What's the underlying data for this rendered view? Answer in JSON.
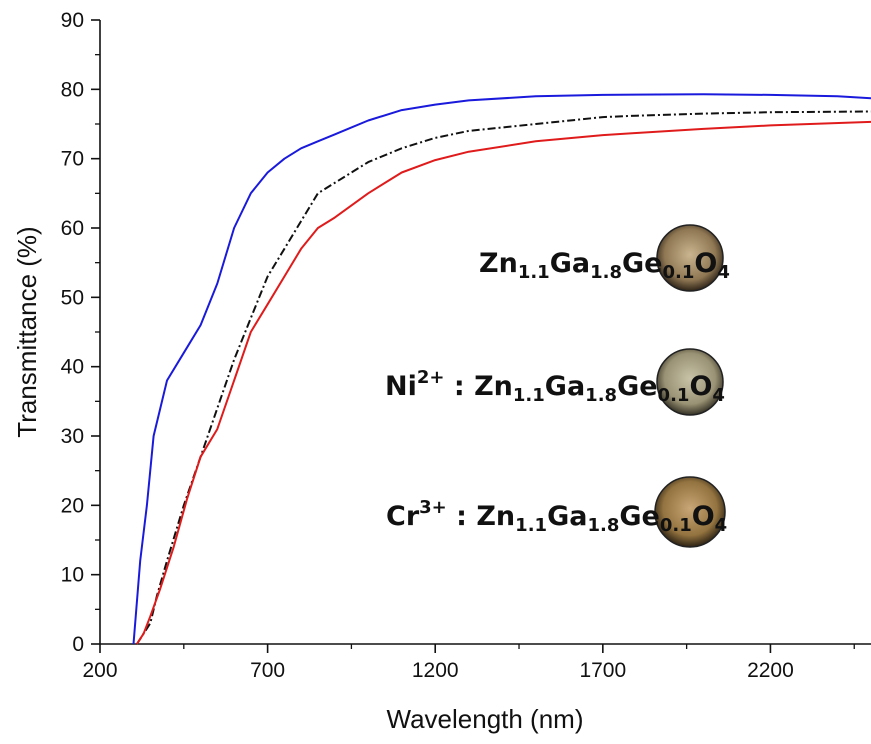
{
  "chart_data": {
    "type": "line",
    "xlabel": "Wavelength (nm)",
    "ylabel": "Transmittance (%)",
    "xlim": [
      200,
      2500
    ],
    "ylim": [
      0,
      90
    ],
    "x_ticks": [
      200,
      700,
      1200,
      1700,
      2200
    ],
    "y_ticks": [
      0,
      10,
      20,
      30,
      40,
      50,
      60,
      70,
      80,
      90
    ],
    "grid": false,
    "series": [
      {
        "color": "#1a1adc",
        "style": "solid",
        "points": [
          [
            300,
            0
          ],
          [
            320,
            12
          ],
          [
            340,
            20
          ],
          [
            360,
            30
          ],
          [
            400,
            38
          ],
          [
            450,
            42
          ],
          [
            500,
            46
          ],
          [
            550,
            52
          ],
          [
            600,
            60
          ],
          [
            650,
            65
          ],
          [
            700,
            68
          ],
          [
            750,
            70
          ],
          [
            800,
            71.5
          ],
          [
            850,
            72.5
          ],
          [
            900,
            73.5
          ],
          [
            1000,
            75.5
          ],
          [
            1100,
            77
          ],
          [
            1200,
            77.8
          ],
          [
            1300,
            78.4
          ],
          [
            1500,
            79
          ],
          [
            1700,
            79.2
          ],
          [
            2000,
            79.3
          ],
          [
            2200,
            79.2
          ],
          [
            2400,
            79
          ],
          [
            2500,
            78.7
          ]
        ]
      },
      {
        "color": "#111111",
        "style": "dashdot",
        "points": [
          [
            310,
            0
          ],
          [
            330,
            1.5
          ],
          [
            350,
            3
          ],
          [
            370,
            7
          ],
          [
            400,
            12
          ],
          [
            450,
            20
          ],
          [
            500,
            27
          ],
          [
            550,
            34
          ],
          [
            600,
            41
          ],
          [
            650,
            47
          ],
          [
            700,
            53
          ],
          [
            750,
            57
          ],
          [
            800,
            61
          ],
          [
            850,
            65
          ],
          [
            900,
            66.5
          ],
          [
            1000,
            69.5
          ],
          [
            1100,
            71.5
          ],
          [
            1200,
            73
          ],
          [
            1300,
            74
          ],
          [
            1500,
            75
          ],
          [
            1700,
            76
          ],
          [
            1800,
            76.2
          ],
          [
            2000,
            76.5
          ],
          [
            2200,
            76.7
          ],
          [
            2500,
            76.8
          ]
        ]
      },
      {
        "color": "#e01b1b",
        "style": "solid",
        "points": [
          [
            310,
            0
          ],
          [
            330,
            1.5
          ],
          [
            350,
            4
          ],
          [
            380,
            8
          ],
          [
            420,
            14
          ],
          [
            460,
            21
          ],
          [
            500,
            27
          ],
          [
            550,
            31
          ],
          [
            600,
            38
          ],
          [
            650,
            45
          ],
          [
            700,
            49
          ],
          [
            750,
            53
          ],
          [
            800,
            57
          ],
          [
            850,
            60
          ],
          [
            900,
            61.5
          ],
          [
            1000,
            65
          ],
          [
            1100,
            68
          ],
          [
            1200,
            69.8
          ],
          [
            1300,
            71
          ],
          [
            1500,
            72.5
          ],
          [
            1700,
            73.4
          ],
          [
            1800,
            73.7
          ],
          [
            2000,
            74.3
          ],
          [
            2200,
            74.8
          ],
          [
            2500,
            75.3
          ]
        ]
      }
    ]
  },
  "samples": [
    {
      "label": "Zn1.1Ga1.8Ge0.1O4",
      "prefix": "",
      "sup": "",
      "disk_color": "#9c8560"
    },
    {
      "label": "Ni2+ : Zn1.1Ga1.8Ge0.1O4",
      "prefix": "Ni",
      "sup": "2+",
      "disk_color": "#a69e80"
    },
    {
      "label": "Cr3+ : Zn1.1Ga1.8Ge0.1O4",
      "prefix": "Cr",
      "sup": "3+",
      "disk_color": "#a0804e"
    }
  ],
  "formula": {
    "zn": "Zn",
    "zn_sub": "1.1",
    "ga": "Ga",
    "ga_sub": "1.8",
    "ge": "Ge",
    "ge_sub": "0.1",
    "o": "O",
    "o_sub": "4",
    "separator": " : "
  }
}
